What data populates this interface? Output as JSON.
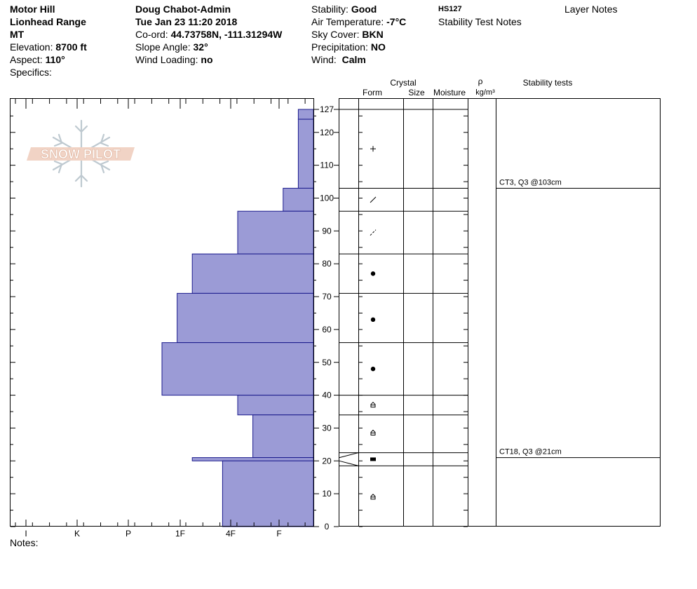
{
  "header": {
    "location": "Motor Hill",
    "range": "Lionhead Range",
    "state": "MT",
    "elevation_label": "Elevation:",
    "elevation_value": "8700 ft",
    "aspect_label": "Aspect:",
    "aspect_value": "110°",
    "specifics_label": "Specifics:",
    "observer": "Doug Chabot-Admin",
    "datetime": "Tue Jan 23 11:20 2018",
    "coord_label": "Co-ord:",
    "coord_value": "44.73758N, -111.31294W",
    "slope_label": "Slope Angle:",
    "slope_value": "32°",
    "wind_loading_label": "Wind Loading:",
    "wind_loading_value": "no",
    "stability_label": "Stability:",
    "stability_value": "Good",
    "air_temp_label": "Air Temperature:",
    "air_temp_value": "-7°C",
    "sky_label": "Sky Cover:",
    "sky_value": "BKN",
    "precip_label": "Precipitation:",
    "precip_value": "NO",
    "wind_label": "Wind:",
    "wind_value": "Calm",
    "hs_label": "HS127",
    "stability_notes_label": "Stability Test Notes",
    "layer_notes_label": "Layer Notes"
  },
  "logo_text": "SNOW PILOT",
  "columns": {
    "crystal": "Crystal",
    "form": "Form",
    "size": "Size",
    "moisture": "Moisture",
    "rho": "ρ",
    "density_unit": "kg/m³",
    "stability_tests": "Stability tests"
  },
  "notes_label": "Notes:",
  "colors": {
    "hardness_fill": "#9b9bd6",
    "hardness_stroke": "#1a1a8c"
  },
  "chart_data": {
    "type": "bar",
    "orientation": "horizontal",
    "y_unit": "cm",
    "ylim": [
      0,
      131
    ],
    "yticks": [
      0,
      10,
      20,
      30,
      40,
      50,
      60,
      70,
      80,
      90,
      100,
      110,
      120,
      127
    ],
    "hardness_scale": [
      "I",
      "K",
      "P",
      "1F",
      "4F",
      "F"
    ],
    "hardness_scale_note": "values = hardness index 0..6 (0 = F side, 6 = I side)",
    "layers": [
      {
        "bottom": 124,
        "top": 127,
        "hardness": 0.3,
        "form": "+"
      },
      {
        "bottom": 103,
        "top": 124,
        "hardness": 0.3,
        "form": "+"
      },
      {
        "bottom": 96,
        "top": 103,
        "hardness": 0.6,
        "form": "/"
      },
      {
        "bottom": 83,
        "top": 96,
        "hardness": 1.5,
        "form": "dashed-slash"
      },
      {
        "bottom": 71,
        "top": 83,
        "hardness": 2.4,
        "form": "dot"
      },
      {
        "bottom": 56,
        "top": 71,
        "hardness": 2.7,
        "form": "dot"
      },
      {
        "bottom": 40,
        "top": 56,
        "hardness": 3.0,
        "form": "dot"
      },
      {
        "bottom": 34,
        "top": 40,
        "hardness": 1.5,
        "form": "cup"
      },
      {
        "bottom": 21,
        "top": 34,
        "hardness": 1.2,
        "form": "cup"
      },
      {
        "bottom": 20,
        "top": 21,
        "hardness": 2.4,
        "form": "crust"
      },
      {
        "bottom": 0,
        "top": 20,
        "hardness": 1.8,
        "form": "cup"
      }
    ],
    "stability_tests": [
      {
        "label": "CT3, Q3 @103cm",
        "depth": 103
      },
      {
        "label": "CT18, Q3 @21cm",
        "depth": 21
      }
    ]
  }
}
